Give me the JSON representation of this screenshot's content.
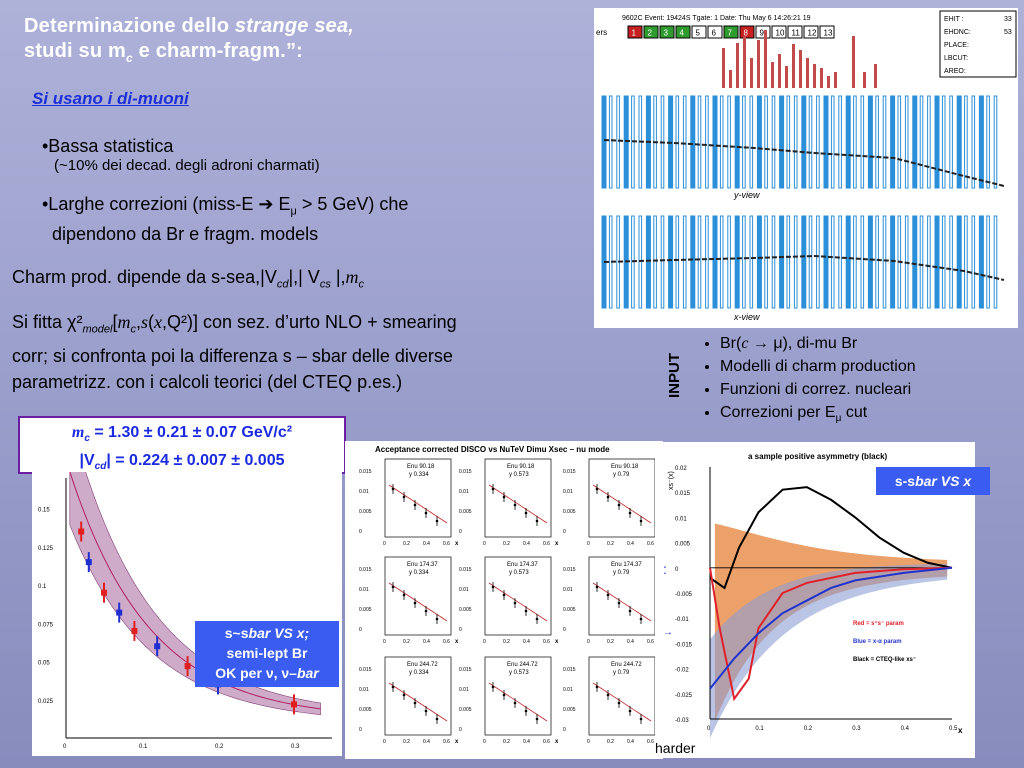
{
  "header": {
    "title_part1": "Determinazione  dello  ",
    "title_italic": "strange  sea,",
    "title_part2a": "studi su m",
    "title_sub": "c",
    "title_part2b": " e charm-fragm.”:",
    "subtitle": "Si usano i di-muoni"
  },
  "bullets": [
    {
      "main": "•Bassa statistica",
      "sub": "(~10% dei decad. degli adroni charmati)"
    },
    {
      "main_a": "•Larghe correzioni  (miss-E ",
      "arrow": "➔",
      "main_b": " E",
      "main_sub": "μ",
      "main_c": " > 5 GeV) che",
      "line2": "dipendono da Br e fragm. models"
    }
  ],
  "para1": {
    "a": "Charm prod. dipende da s-sea,|V",
    "s1": "cd",
    "b": "|,| V",
    "s2": "cs",
    "c": " |,",
    "m": "m",
    "s3": "c"
  },
  "para2": {
    "a": "Si fitta ",
    "chi": "χ²",
    "model": "model",
    "b": "[",
    "m": "m",
    "c": "c",
    "d": ",",
    "s": "s",
    "e": "(",
    "x": "x",
    "f": ",Q²)] con sez. d’urto NLO + smearing",
    "line2": "corr; si confronta poi la differenza s – sbar delle diverse",
    "line3": "parametrizz. con i calcoli teorici (del CTEQ p.es.)"
  },
  "input": {
    "label": "INPUT",
    "items": [
      {
        "a": "Br(",
        "c": "c",
        "arr": " → ",
        "mu": "μ",
        "b": "), di-mu Br"
      },
      {
        "a": "Modelli di charm production"
      },
      {
        "a": "Funzioni di correz. nucleari"
      },
      {
        "a": "Correzioni per E",
        "mu": "μ",
        "b": " cut"
      }
    ]
  },
  "result_box": {
    "m": "m",
    "mc": "c",
    "line1": " = 1.30 ± 0.21 ± 0.07 GeV/c²",
    "l2a": "|V",
    "l2s": "cd",
    "l2b": "| = 0.224 ± 0.007 ± 0.005"
  },
  "ssbar_box": {
    "l1a": "s~s",
    "l1b": "bar VS x;",
    "l2": "semi-lept Br",
    "l3a": "OK per ",
    "nu": "ν",
    ", ": ", ",
    "nu2": "ν–",
    "bar": "bar"
  },
  "label_ssbar_x": {
    "a": "s-s",
    "b": "bar VS x"
  },
  "event_display": {
    "header": "9602C  Event: 19424S  Tgate: 1  Date: Thu May  6 14:26:21 19",
    "buttons": [
      "1",
      "2",
      "3",
      "4",
      "5",
      "6",
      "7",
      "8",
      "9",
      "10",
      "11",
      "12",
      "13"
    ],
    "button_colors": [
      "#c62020",
      "#2f9b2f",
      "#2f9b2f",
      "#2f9b2f",
      "#ffffff",
      "#ffffff",
      "#2f9b2f",
      "#c62020",
      "#ffffff",
      "#ffffff",
      "#ffffff",
      "#ffffff",
      "#ffffff"
    ],
    "info": [
      "EHIT :",
      "EHDNC:",
      "PLACE:",
      "LBCUT:",
      "AREO:"
    ],
    "info_vals": [
      "33",
      "53",
      "",
      "",
      ""
    ],
    "yview": "y-view",
    "xview": "x-view",
    "left_label": "ers"
  },
  "grid_chart": {
    "title": "Acceptance corrected DISCO vs NuTeV Dimu Xsec – nu mode",
    "ytick": [
      "0.015",
      "0.01",
      "0.005",
      "0"
    ],
    "xtick": [
      "0",
      "0.2",
      "0.4",
      "0.6"
    ],
    "xlabel": "x",
    "rows": [
      {
        "enu": "Enu 90.18",
        "ys": [
          "y 0.334",
          "y 0.573",
          "y 0.79"
        ]
      },
      {
        "enu": "Enu 174.37",
        "ys": [
          "y 0.334",
          "y 0.573",
          "y 0.79"
        ]
      },
      {
        "enu": "Enu 244.72",
        "ys": [
          "y 0.334",
          "y 0.573",
          "y 0.79"
        ]
      }
    ]
  },
  "asym_chart": {
    "title": "a sample positive asymmetry (black)",
    "ylabel": "xs⁻(x)",
    "yticks": [
      "0.02",
      "0.015",
      "0.01",
      "0.005",
      "0",
      "-0.005",
      "-0.01",
      "-0.015",
      "-0.02",
      "-0.025",
      "-0.03"
    ],
    "xticks": [
      "0",
      "0.1",
      "0.2",
      "0.3",
      "0.4",
      "0.5"
    ],
    "xlabel": "x",
    "legend": [
      {
        "text": "Red = s⁺s⁻ param",
        "color": "#e0202a"
      },
      {
        "text": "Blue = x-α param",
        "color": "#2233cc"
      },
      {
        "text": "Black = CTEQ-like xs⁻",
        "color": "#000000"
      }
    ],
    "behind_a": ":",
    "behind_b": "→",
    "behind_c": "harder"
  },
  "band_chart": {
    "yticks": [
      "0.15",
      "0.125",
      "0.1",
      "0.075",
      "0.05",
      "0.025"
    ],
    "xticks": [
      "0",
      "0.1",
      "0.2",
      "0.3"
    ]
  },
  "chart_data": [
    {
      "type": "line",
      "title": "a sample positive asymmetry (black)",
      "xlabel": "x",
      "ylabel": "xs⁻(x)",
      "xlim": [
        0,
        0.5
      ],
      "ylim": [
        -0.03,
        0.02
      ],
      "series": [
        {
          "name": "Black = CTEQ-like xs⁻",
          "x": [
            0,
            0.03,
            0.06,
            0.1,
            0.15,
            0.2,
            0.25,
            0.3,
            0.35,
            0.4,
            0.45,
            0.5
          ],
          "y": [
            -0.002,
            -0.004,
            0.004,
            0.011,
            0.0155,
            0.016,
            0.0135,
            0.01,
            0.006,
            0.003,
            0.001,
            0.0
          ]
        },
        {
          "name": "Red = s⁺s⁻ param",
          "x": [
            0,
            0.02,
            0.05,
            0.08,
            0.1,
            0.15,
            0.2,
            0.3,
            0.4,
            0.5
          ],
          "y": [
            0.0,
            -0.012,
            -0.026,
            -0.022,
            -0.012,
            -0.005,
            -0.003,
            -0.001,
            -0.0003,
            0
          ]
        },
        {
          "name": "Blue = x-α param",
          "x": [
            0,
            0.05,
            0.1,
            0.15,
            0.2,
            0.25,
            0.3,
            0.4,
            0.5
          ],
          "y": [
            -0.024,
            -0.018,
            -0.013,
            -0.009,
            -0.0065,
            -0.004,
            -0.0025,
            -0.001,
            0
          ]
        }
      ]
    },
    {
      "type": "scatter",
      "xlim": [
        0,
        0.35
      ],
      "ylim": [
        0,
        0.17
      ],
      "series": [
        {
          "x": [
            0.02,
            0.03,
            0.05,
            0.07,
            0.09,
            0.12,
            0.16,
            0.2,
            0.3
          ],
          "y": [
            0.135,
            0.115,
            0.095,
            0.082,
            0.07,
            0.06,
            0.047,
            0.035,
            0.022
          ]
        }
      ]
    }
  ]
}
